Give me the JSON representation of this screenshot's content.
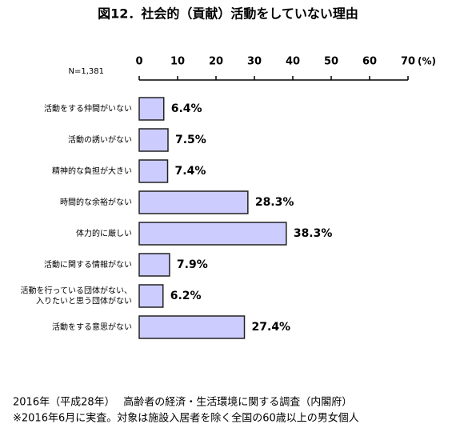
{
  "chart_data": {
    "type": "barh",
    "title": "図12．社会的（貢献）活動をしていない理由",
    "note": "N=1,381",
    "x_unit": "(%)",
    "categories": [
      "活動をする仲間がいない",
      "活動の誘いがない",
      "精神的な負担が大きい",
      "時間的な余裕がない",
      "体力的に厳しい",
      "活動に関する情報がない",
      "活動を行っている団体がない、\n入りたいと思う団体がない",
      "活動をする意思がない"
    ],
    "values": [
      6.4,
      7.5,
      7.4,
      28.3,
      38.3,
      7.9,
      6.2,
      27.4
    ],
    "value_labels": [
      "6.4%",
      "7.5%",
      "7.4%",
      "28.3%",
      "38.3%",
      "7.9%",
      "6.2%",
      "27.4%"
    ],
    "color": "#ccccff",
    "xlim": [
      0,
      70
    ],
    "xticks": [
      0,
      10,
      20,
      30,
      40,
      50,
      60,
      70
    ],
    "footer": [
      "2016年（平成28年）　 高齢者の経済・生活環境に関する調査（内閣府）",
      "※2016年6月に実査。対象は施設入居者を除く全国の60歳以上の男女個人"
    ]
  }
}
